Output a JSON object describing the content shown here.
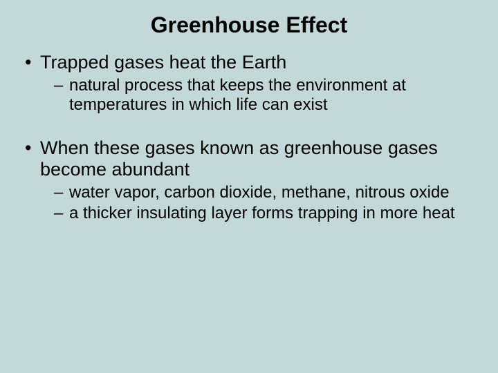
{
  "background_color": "#c3d9d9",
  "text_color": "#000000",
  "font_family": "Arial",
  "title": {
    "text": "Greenhouse Effect",
    "fontsize": 32,
    "weight": "bold",
    "align": "center"
  },
  "bullets": [
    {
      "level": 1,
      "text": "Trapped gases heat the Earth",
      "fontsize": 27
    },
    {
      "level": 2,
      "text": "natural process that keeps the environment at temperatures in which life can exist",
      "fontsize": 24
    },
    {
      "level": 0,
      "gap": true
    },
    {
      "level": 1,
      "text": "When these gases known as greenhouse gases become abundant",
      "fontsize": 27
    },
    {
      "level": 2,
      "text": "water vapor, carbon dioxide, methane, nitrous oxide",
      "fontsize": 24
    },
    {
      "level": 2,
      "text": "a thicker insulating layer forms trapping in more heat",
      "fontsize": 24
    }
  ]
}
